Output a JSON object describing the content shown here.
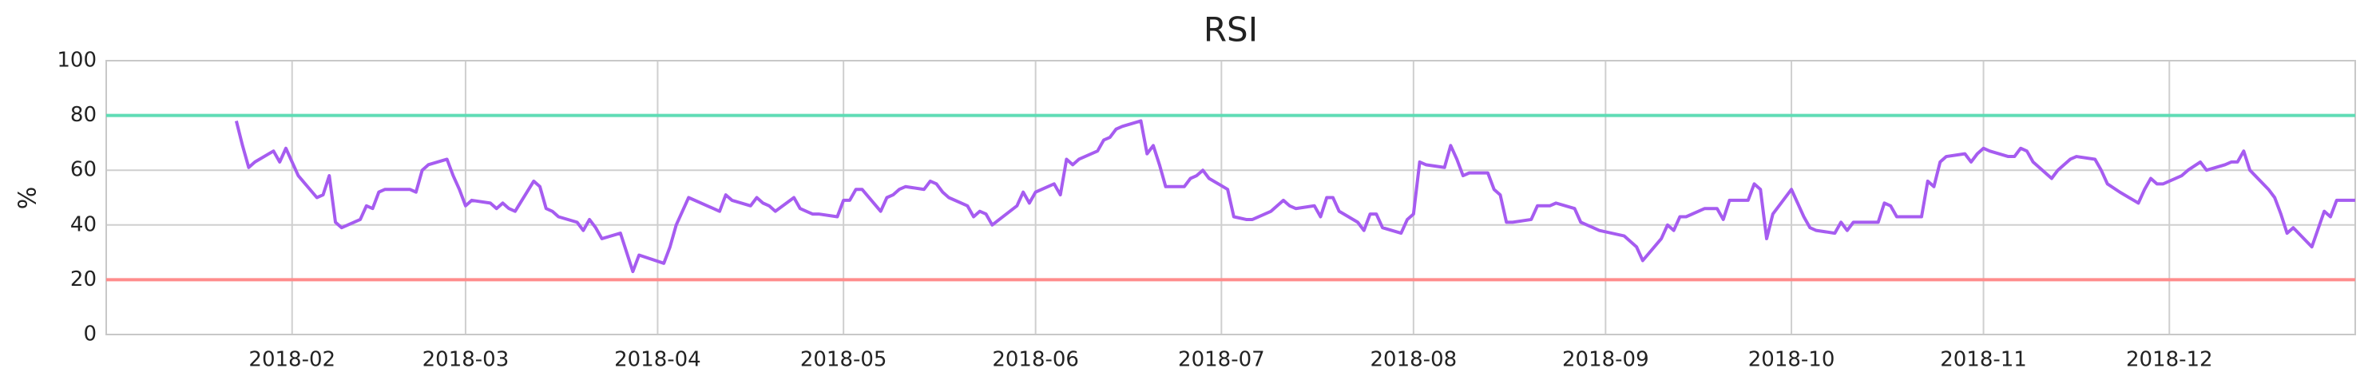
{
  "chart_data": {
    "type": "line",
    "title": "RSI",
    "y_label": "%",
    "x": [
      "2018-01-23",
      "2018-01-24",
      "2018-01-25",
      "2018-01-26",
      "2018-01-29",
      "2018-01-30",
      "2018-01-31",
      "2018-02-01",
      "2018-02-02",
      "2018-02-05",
      "2018-02-06",
      "2018-02-07",
      "2018-02-08",
      "2018-02-09",
      "2018-02-12",
      "2018-02-13",
      "2018-02-14",
      "2018-02-15",
      "2018-02-16",
      "2018-02-20",
      "2018-02-21",
      "2018-02-22",
      "2018-02-23",
      "2018-02-26",
      "2018-02-27",
      "2018-02-28",
      "2018-03-01",
      "2018-03-02",
      "2018-03-05",
      "2018-03-06",
      "2018-03-07",
      "2018-03-08",
      "2018-03-09",
      "2018-03-12",
      "2018-03-13",
      "2018-03-14",
      "2018-03-15",
      "2018-03-16",
      "2018-03-19",
      "2018-03-20",
      "2018-03-21",
      "2018-03-22",
      "2018-03-23",
      "2018-03-26",
      "2018-03-27",
      "2018-03-28",
      "2018-03-29",
      "2018-04-02",
      "2018-04-03",
      "2018-04-04",
      "2018-04-05",
      "2018-04-06",
      "2018-04-09",
      "2018-04-10",
      "2018-04-11",
      "2018-04-12",
      "2018-04-13",
      "2018-04-16",
      "2018-04-17",
      "2018-04-18",
      "2018-04-19",
      "2018-04-20",
      "2018-04-23",
      "2018-04-24",
      "2018-04-25",
      "2018-04-26",
      "2018-04-27",
      "2018-04-30",
      "2018-05-01",
      "2018-05-02",
      "2018-05-03",
      "2018-05-04",
      "2018-05-07",
      "2018-05-08",
      "2018-05-09",
      "2018-05-10",
      "2018-05-11",
      "2018-05-14",
      "2018-05-15",
      "2018-05-16",
      "2018-05-17",
      "2018-05-18",
      "2018-05-21",
      "2018-05-22",
      "2018-05-23",
      "2018-05-24",
      "2018-05-25",
      "2018-05-29",
      "2018-05-30",
      "2018-05-31",
      "2018-06-01",
      "2018-06-04",
      "2018-06-05",
      "2018-06-06",
      "2018-06-07",
      "2018-06-08",
      "2018-06-11",
      "2018-06-12",
      "2018-06-13",
      "2018-06-14",
      "2018-06-15",
      "2018-06-18",
      "2018-06-19",
      "2018-06-20",
      "2018-06-21",
      "2018-06-22",
      "2018-06-25",
      "2018-06-26",
      "2018-06-27",
      "2018-06-28",
      "2018-06-29",
      "2018-07-02",
      "2018-07-03",
      "2018-07-05",
      "2018-07-06",
      "2018-07-09",
      "2018-07-10",
      "2018-07-11",
      "2018-07-12",
      "2018-07-13",
      "2018-07-16",
      "2018-07-17",
      "2018-07-18",
      "2018-07-19",
      "2018-07-20",
      "2018-07-23",
      "2018-07-24",
      "2018-07-25",
      "2018-07-26",
      "2018-07-27",
      "2018-07-30",
      "2018-07-31",
      "2018-08-01",
      "2018-08-02",
      "2018-08-03",
      "2018-08-06",
      "2018-08-07",
      "2018-08-08",
      "2018-08-09",
      "2018-08-10",
      "2018-08-13",
      "2018-08-14",
      "2018-08-15",
      "2018-08-16",
      "2018-08-17",
      "2018-08-20",
      "2018-08-21",
      "2018-08-22",
      "2018-08-23",
      "2018-08-24",
      "2018-08-27",
      "2018-08-28",
      "2018-08-29",
      "2018-08-30",
      "2018-08-31",
      "2018-09-04",
      "2018-09-05",
      "2018-09-06",
      "2018-09-07",
      "2018-09-10",
      "2018-09-11",
      "2018-09-12",
      "2018-09-13",
      "2018-09-14",
      "2018-09-17",
      "2018-09-18",
      "2018-09-19",
      "2018-09-20",
      "2018-09-21",
      "2018-09-24",
      "2018-09-25",
      "2018-09-26",
      "2018-09-27",
      "2018-09-28",
      "2018-10-01",
      "2018-10-02",
      "2018-10-03",
      "2018-10-04",
      "2018-10-05",
      "2018-10-08",
      "2018-10-09",
      "2018-10-10",
      "2018-10-11",
      "2018-10-12",
      "2018-10-15",
      "2018-10-16",
      "2018-10-17",
      "2018-10-18",
      "2018-10-19",
      "2018-10-22",
      "2018-10-23",
      "2018-10-24",
      "2018-10-25",
      "2018-10-26",
      "2018-10-29",
      "2018-10-30",
      "2018-10-31",
      "2018-11-01",
      "2018-11-02",
      "2018-11-05",
      "2018-11-06",
      "2018-11-07",
      "2018-11-08",
      "2018-11-09",
      "2018-11-12",
      "2018-11-13",
      "2018-11-14",
      "2018-11-15",
      "2018-11-16",
      "2018-11-19",
      "2018-11-20",
      "2018-11-21",
      "2018-11-23",
      "2018-11-26",
      "2018-11-27",
      "2018-11-28",
      "2018-11-29",
      "2018-11-30",
      "2018-12-03",
      "2018-12-04",
      "2018-12-06",
      "2018-12-07",
      "2018-12-10",
      "2018-12-11",
      "2018-12-12",
      "2018-12-13",
      "2018-12-14",
      "2018-12-17",
      "2018-12-18",
      "2018-12-19",
      "2018-12-20",
      "2018-12-21",
      "2018-12-24",
      "2018-12-26",
      "2018-12-27",
      "2018-12-28",
      "2018-12-31"
    ],
    "values": [
      78,
      69,
      61,
      63,
      67,
      63,
      68,
      63,
      58,
      50,
      51,
      58,
      41,
      39,
      42,
      47,
      46,
      52,
      53,
      53,
      52,
      60,
      62,
      64,
      58,
      53,
      47,
      49,
      48,
      46,
      48,
      46,
      45,
      56,
      54,
      46,
      45,
      43,
      41,
      38,
      42,
      39,
      35,
      37,
      30,
      23,
      29,
      26,
      32,
      40,
      45,
      50,
      47,
      46,
      45,
      51,
      49,
      47,
      50,
      48,
      47,
      45,
      50,
      46,
      45,
      44,
      44,
      43,
      49,
      49,
      53,
      53,
      45,
      50,
      51,
      53,
      54,
      53,
      56,
      55,
      52,
      50,
      47,
      43,
      45,
      44,
      40,
      47,
      52,
      48,
      52,
      55,
      51,
      64,
      62,
      64,
      67,
      71,
      72,
      75,
      76,
      78,
      66,
      69,
      62,
      54,
      54,
      57,
      58,
      60,
      57,
      53,
      43,
      42,
      42,
      45,
      47,
      49,
      47,
      46,
      47,
      43,
      50,
      50,
      45,
      41,
      38,
      44,
      44,
      39,
      37,
      42,
      44,
      63,
      62,
      61,
      69,
      64,
      58,
      59,
      59,
      53,
      51,
      41,
      41,
      42,
      47,
      47,
      47,
      48,
      46,
      41,
      40,
      39,
      38,
      36,
      34,
      32,
      27,
      35,
      40,
      38,
      43,
      43,
      46,
      46,
      46,
      42,
      49,
      49,
      55,
      53,
      35,
      44,
      53,
      48,
      43,
      39,
      38,
      37,
      41,
      38,
      41,
      41,
      41,
      48,
      47,
      43,
      43,
      43,
      56,
      54,
      63,
      65,
      66,
      63,
      66,
      68,
      67,
      65,
      65,
      68,
      67,
      63,
      57,
      60,
      62,
      64,
      65,
      64,
      60,
      55,
      52,
      48,
      53,
      57,
      55,
      55,
      58,
      60,
      63,
      60,
      62,
      63,
      63,
      67,
      60,
      53,
      50,
      44,
      37,
      39,
      32,
      45,
      43,
      49,
      49
    ],
    "color": "#a65cf0",
    "hlines": [
      {
        "value": 80,
        "color": "#5fdcb5"
      },
      {
        "value": 20,
        "color": "#ff8c8c"
      }
    ],
    "xlim": [
      "2018-01-02",
      "2018-12-31"
    ],
    "xticks": [
      {
        "value": "2018-02-01",
        "label": "2018-02"
      },
      {
        "value": "2018-03-01",
        "label": "2018-03"
      },
      {
        "value": "2018-04-01",
        "label": "2018-04"
      },
      {
        "value": "2018-05-01",
        "label": "2018-05"
      },
      {
        "value": "2018-06-01",
        "label": "2018-06"
      },
      {
        "value": "2018-07-01",
        "label": "2018-07"
      },
      {
        "value": "2018-08-01",
        "label": "2018-08"
      },
      {
        "value": "2018-09-01",
        "label": "2018-09"
      },
      {
        "value": "2018-10-01",
        "label": "2018-10"
      },
      {
        "value": "2018-11-01",
        "label": "2018-11"
      },
      {
        "value": "2018-12-01",
        "label": "2018-12"
      }
    ],
    "ylim": [
      0,
      100
    ],
    "yticks": [
      0,
      20,
      40,
      60,
      80,
      100
    ],
    "grid": true
  }
}
